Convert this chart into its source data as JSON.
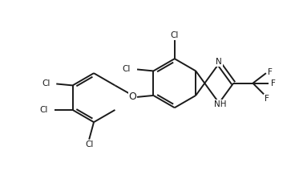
{
  "background_color": "#ffffff",
  "line_color": "#1a1a1a",
  "text_color": "#1a1a1a",
  "line_width": 1.4,
  "font_size": 7.5,
  "figsize": [
    3.73,
    2.23
  ],
  "dpi": 100,
  "xlim": [
    0,
    9.5
  ],
  "ylim": [
    0,
    5.7
  ]
}
